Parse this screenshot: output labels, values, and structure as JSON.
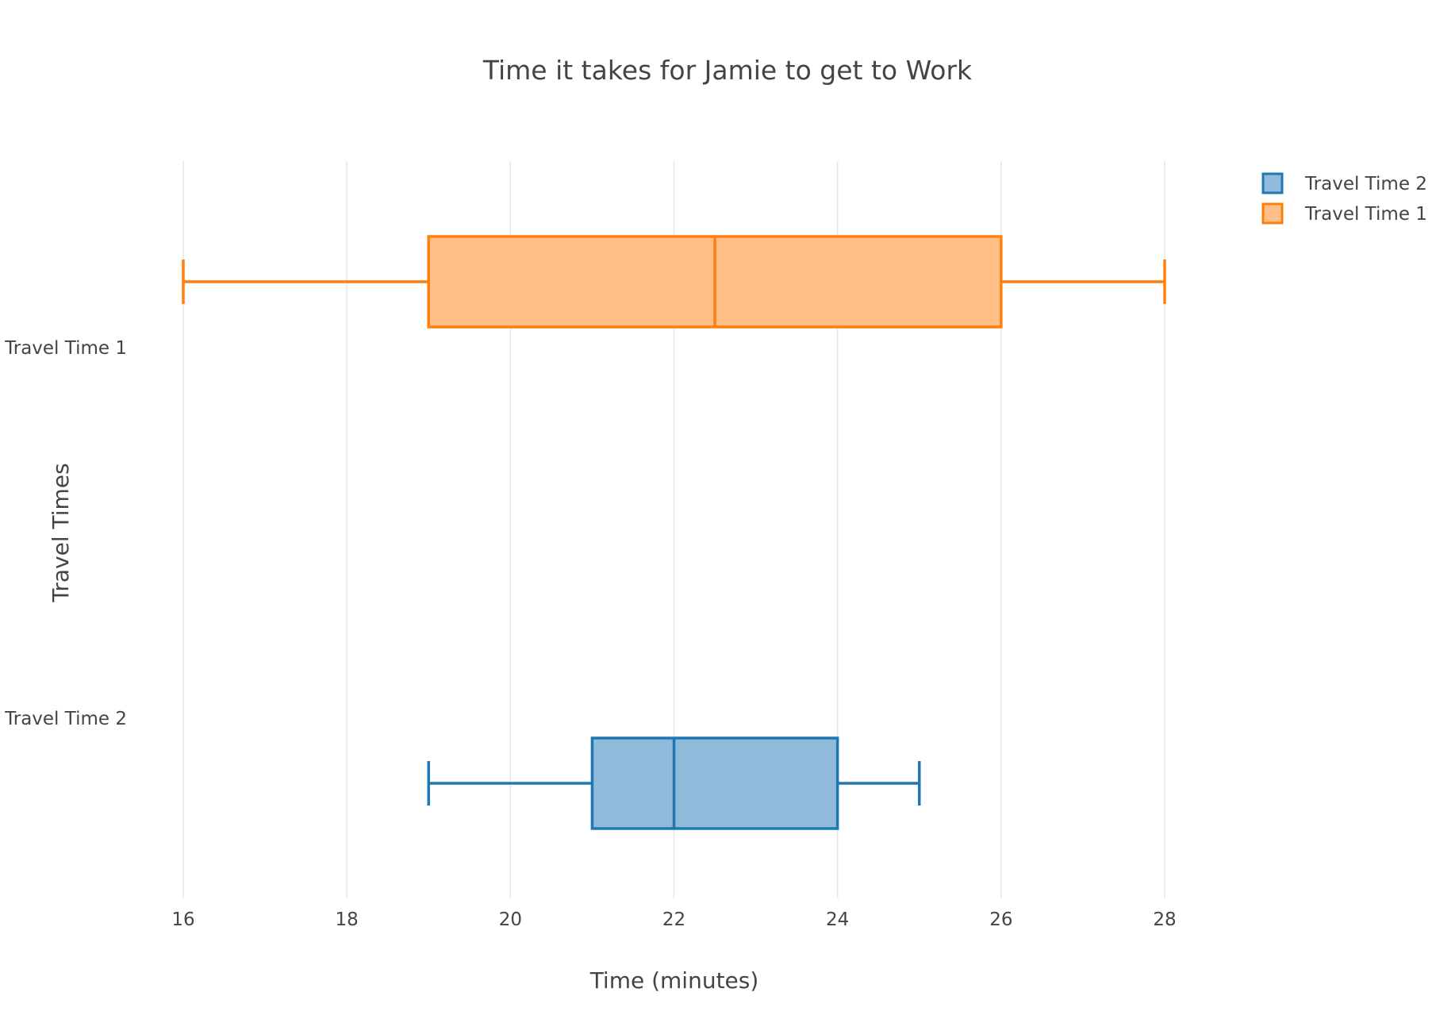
{
  "chart_data": {
    "type": "box",
    "orientation": "horizontal",
    "title": "Time it takes for Jamie to get to Work",
    "xlabel": "Time (minutes)",
    "ylabel": "Travel Times",
    "xlim": [
      16,
      28
    ],
    "xticks": [
      16,
      18,
      20,
      22,
      24,
      26,
      28
    ],
    "grid": true,
    "legend_position": "top-right",
    "categories": [
      "Travel Time 1",
      "Travel Time 2"
    ],
    "series": [
      {
        "name": "Travel Time 1",
        "min": 16,
        "q1": 19,
        "median": 22.5,
        "q3": 26,
        "max": 28,
        "color": "#ff7f0e",
        "fill": "#ffbf87"
      },
      {
        "name": "Travel Time 2",
        "min": 19,
        "q1": 21,
        "median": 22,
        "q3": 24,
        "max": 25,
        "color": "#1f77b4",
        "fill": "#8fbada"
      }
    ],
    "legend": [
      "Travel Time 2",
      "Travel Time 1"
    ]
  }
}
